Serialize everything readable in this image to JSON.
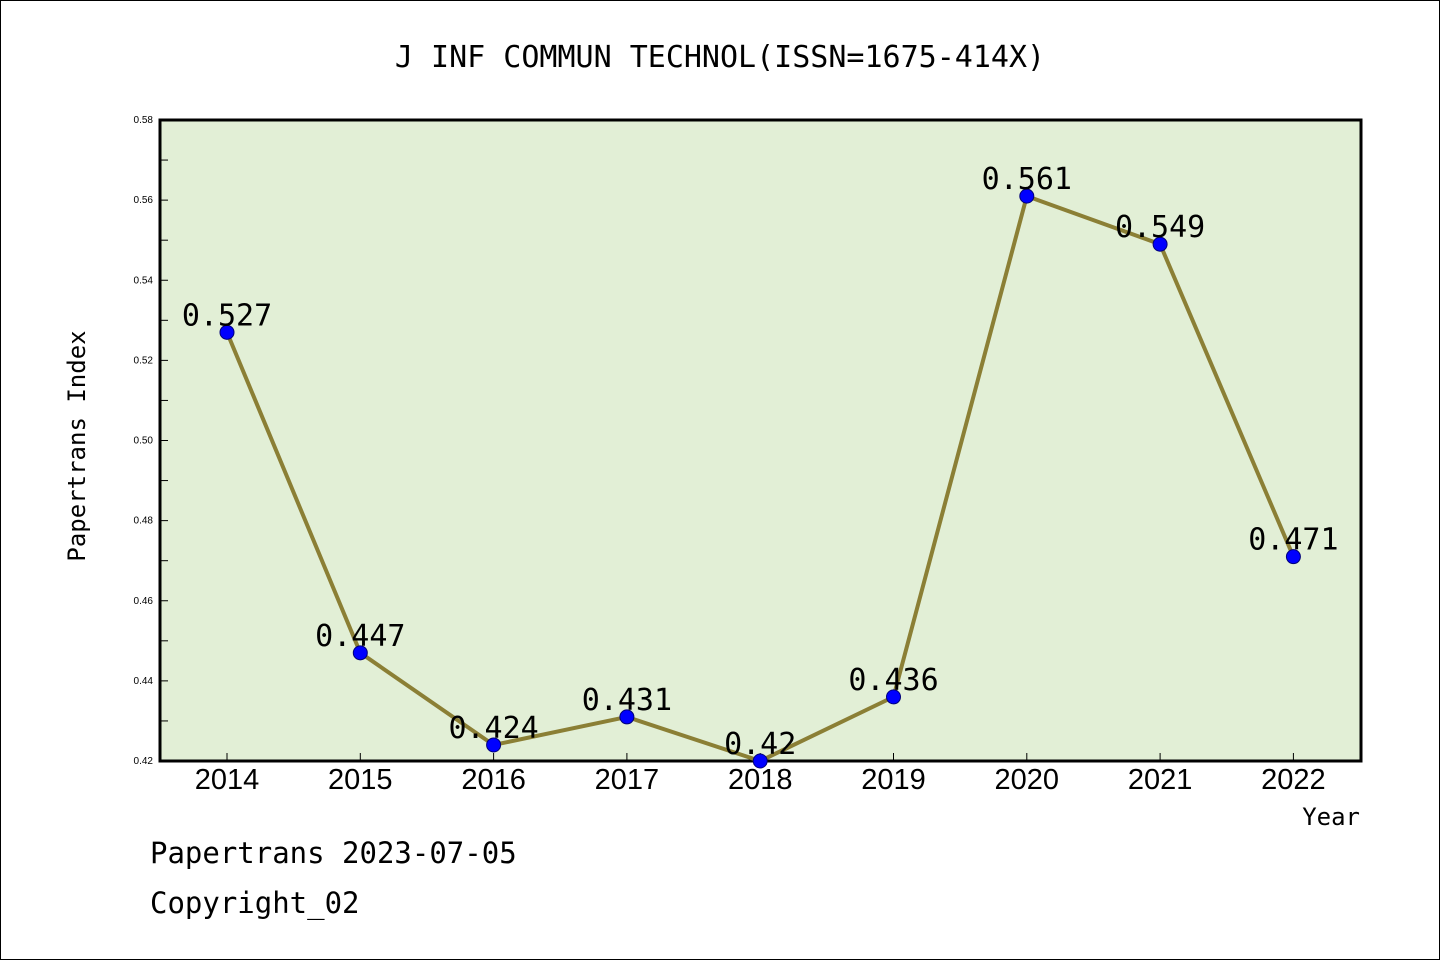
{
  "chart_data": {
    "type": "line",
    "title": "J INF COMMUN TECHNOL(ISSN=1675-414X)",
    "xlabel": "Year",
    "ylabel": "Papertrans Index",
    "categories": [
      "2014",
      "2015",
      "2016",
      "2017",
      "2018",
      "2019",
      "2020",
      "2021",
      "2022"
    ],
    "series": [
      {
        "values": [
          0.527,
          0.447,
          0.424,
          0.431,
          0.42,
          0.436,
          0.561,
          0.549,
          0.471
        ],
        "labels": [
          "0.527",
          "0.447",
          "0.424",
          "0.431",
          "0.42",
          "0.436",
          "0.561",
          "0.549",
          "0.471"
        ]
      }
    ],
    "ylim": [
      0.42,
      0.58
    ],
    "yticks": [
      "0.42",
      "0.44",
      "0.46",
      "0.48",
      "0.50",
      "0.52",
      "0.54",
      "0.56",
      "0.58"
    ],
    "grid": false,
    "colors": {
      "plot_background": "#e2efd6",
      "line": "#8b7f35",
      "marker": "#0000ff"
    }
  },
  "footer": {
    "date_line": "Papertrans 2023-07-05",
    "copyright": "Copyright_02"
  }
}
